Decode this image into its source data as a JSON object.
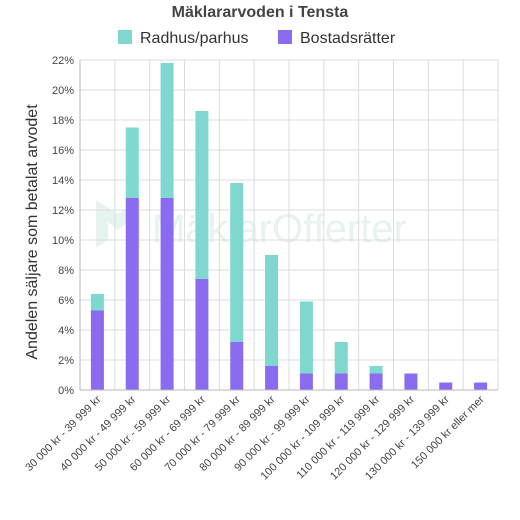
{
  "chart_data": {
    "type": "bar",
    "stacked": true,
    "title": "Mäklararvoden i Tensta",
    "ylabel": "Andelen säljare som betalat arvodet",
    "xlabel": "",
    "ylim": [
      0,
      22
    ],
    "yticks": [
      "0%",
      "2%",
      "4%",
      "6%",
      "8%",
      "10%",
      "12%",
      "14%",
      "16%",
      "18%",
      "20%",
      "22%"
    ],
    "ytick_values": [
      0,
      2,
      4,
      6,
      8,
      10,
      12,
      14,
      16,
      18,
      20,
      22
    ],
    "grid": true,
    "legend_position": "top",
    "categories": [
      "30 000 kr - 39 999 kr",
      "40 000 kr - 49 999 kr",
      "50 000 kr - 59 999 kr",
      "60 000 kr - 69 999 kr",
      "70 000 kr - 79 999 kr",
      "80 000 kr - 89 999 kr",
      "90 000 kr - 99 999 kr",
      "100 000 kr - 109 999 kr",
      "110 000 kr - 119 999 kr",
      "120 000 kr - 129 999 kr",
      "130 000 kr - 139 999 kr",
      "150 000 kr eller mer"
    ],
    "series": [
      {
        "name": "Bostadsrätter",
        "color": "#8b6cf0",
        "values": [
          5.3,
          12.8,
          12.8,
          7.4,
          3.2,
          1.6,
          1.1,
          1.1,
          1.1,
          1.1,
          0.5,
          0.5
        ]
      },
      {
        "name": "Radhus/parhus",
        "color": "#7fd8cf",
        "values": [
          1.1,
          4.7,
          9.0,
          11.2,
          10.6,
          7.4,
          4.8,
          2.1,
          0.5,
          0.0,
          0.0,
          0.0
        ]
      }
    ],
    "legend_order": [
      "Radhus/parhus",
      "Bostadsrätter"
    ],
    "watermark": "MäklarOfferter"
  }
}
